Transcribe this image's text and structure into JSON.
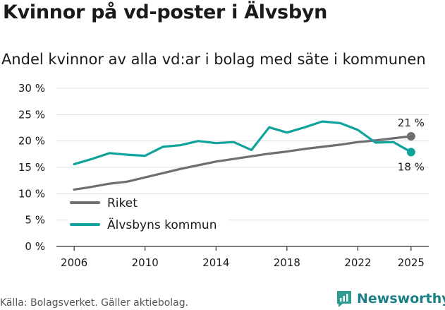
{
  "title": "Kvinnor på vd-poster i Älvsbyn",
  "subtitle": "Andel kvinnor av alla vd:ar i bolag med säte i kommunen",
  "source": "Källa: Bolagsverket. Gäller aktiebolag.",
  "brand": {
    "name": "Newsworthy",
    "icon": "newsworthy-logo-icon"
  },
  "colors": {
    "riket": "#6f6e73",
    "alvsbyn": "#0fa39b",
    "grid": "#dcdcdc",
    "axis": "#333333",
    "brand": "#1d7f86"
  },
  "chart_data": {
    "type": "line",
    "x": [
      2006,
      2007,
      2008,
      2009,
      2010,
      2011,
      2012,
      2013,
      2014,
      2015,
      2016,
      2017,
      2018,
      2019,
      2020,
      2021,
      2022,
      2023,
      2024,
      2025
    ],
    "series": [
      {
        "name": "Riket",
        "color": "#6f6e73",
        "values": [
          10.8,
          11.3,
          11.9,
          12.3,
          13.1,
          13.9,
          14.7,
          15.4,
          16.1,
          16.6,
          17.1,
          17.6,
          18.0,
          18.5,
          18.9,
          19.3,
          19.8,
          20.1,
          20.5,
          20.9
        ],
        "end_label": "21 %"
      },
      {
        "name": "Älvsbyns kommun",
        "color": "#0fa39b",
        "values": [
          15.6,
          16.6,
          17.7,
          17.4,
          17.2,
          18.9,
          19.2,
          20.0,
          19.6,
          19.8,
          18.3,
          22.6,
          21.6,
          22.6,
          23.7,
          23.4,
          22.1,
          19.7,
          19.8,
          17.9
        ],
        "end_label": "18 %"
      }
    ],
    "y_ticks": [
      "0 %",
      "5 %",
      "10 %",
      "15 %",
      "20 %",
      "25 %",
      "30 %"
    ],
    "x_ticks": [
      "2006",
      "2010",
      "2014",
      "2018",
      "2022",
      "2025"
    ],
    "ylim": [
      0,
      30
    ],
    "xlim": [
      2005,
      2026
    ],
    "grid": true,
    "legend": "bottom-left"
  }
}
